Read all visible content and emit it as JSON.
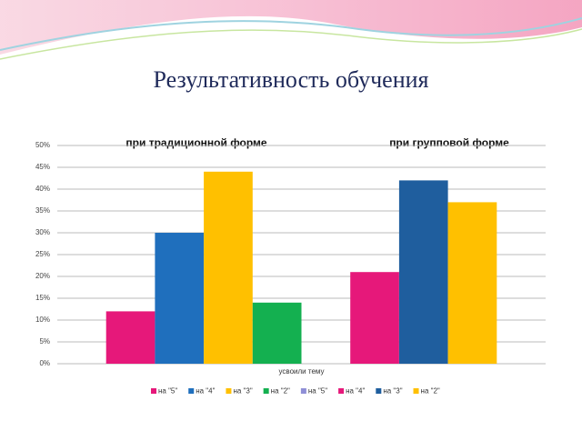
{
  "chart_data": {
    "type": "bar",
    "title": "Результативность обучения",
    "annotations": [
      "при традиционной форме",
      "при групповой форме"
    ],
    "categories": [
      "усвоили тему"
    ],
    "series": [
      {
        "name": "на \"5\"",
        "color": "#e6187a",
        "values": [
          12
        ]
      },
      {
        "name": "на \"4\"",
        "color": "#1f6fbd",
        "values": [
          30
        ]
      },
      {
        "name": "на \"3\"",
        "color": "#ffc000",
        "values": [
          44
        ]
      },
      {
        "name": "на \"2\"",
        "color": "#14b050",
        "values": [
          14
        ]
      },
      {
        "name": "на \"5\"",
        "color": "#8f8fd6",
        "values": [
          null
        ]
      },
      {
        "name": "на \"4\"",
        "color": "#e6187a",
        "values": [
          21
        ]
      },
      {
        "name": "на \"3\"",
        "color": "#1f5e9e",
        "values": [
          42
        ]
      },
      {
        "name": "на \"2\"",
        "color": "#ffc000",
        "values": [
          37
        ]
      }
    ],
    "ylim": [
      0,
      50
    ],
    "yticks": [
      {
        "value": 0,
        "label": "0%"
      },
      {
        "value": 5,
        "label": "5%"
      },
      {
        "value": 10,
        "label": "10%"
      },
      {
        "value": 15,
        "label": "15%"
      },
      {
        "value": 20,
        "label": "20%"
      },
      {
        "value": 25,
        "label": "25%"
      },
      {
        "value": 30,
        "label": "30%"
      },
      {
        "value": 35,
        "label": "35%"
      },
      {
        "value": 40,
        "label": "40%"
      },
      {
        "value": 45,
        "label": "45%"
      },
      {
        "value": 50,
        "label": "50%"
      }
    ],
    "grid": true,
    "legend": "bottom"
  }
}
